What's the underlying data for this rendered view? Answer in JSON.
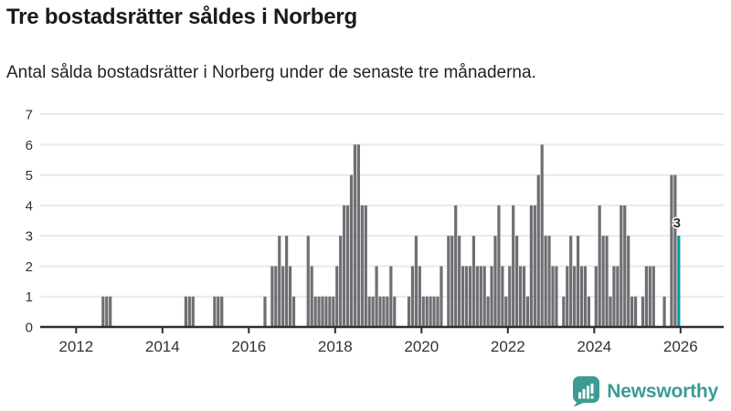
{
  "header": {
    "title": "Tre bostadsrätter såldes i Norberg",
    "subtitle": "Antal sålda bostadsrätter i Norberg under de senaste tre månaderna."
  },
  "colors": {
    "bar": "#6f6e73",
    "highlight": "#00a1a1",
    "grid": "#e9e9e9",
    "axis": "#2e2d2f",
    "tick_text": "#333333",
    "title_text": "#1a1a1a",
    "logo": "#3b9c93"
  },
  "chart_data": {
    "type": "bar",
    "title": "Tre bostadsrätter såldes i Norberg",
    "subtitle": "Antal sålda bostadsrätter i Norberg under de senaste tre månaderna.",
    "xlabel": "",
    "ylabel": "",
    "ylim": [
      0,
      7
    ],
    "grid": true,
    "yticks": [
      "0",
      "1",
      "2",
      "3",
      "4",
      "5",
      "6",
      "7"
    ],
    "xticks": [
      "2012",
      "2014",
      "2016",
      "2018",
      "2020",
      "2022",
      "2024",
      "2026"
    ],
    "start": "2011-04",
    "end": "2025-12",
    "values_by_year": {
      "2011": [
        0,
        0,
        0,
        0,
        0,
        0,
        0,
        0,
        0
      ],
      "2012": [
        0,
        0,
        0,
        0,
        0,
        0,
        0,
        1,
        1,
        1,
        0,
        0
      ],
      "2013": [
        0,
        0,
        0,
        0,
        0,
        0,
        0,
        0,
        0,
        0,
        0,
        0
      ],
      "2014": [
        0,
        0,
        0,
        0,
        0,
        0,
        1,
        1,
        1,
        0,
        0,
        0
      ],
      "2015": [
        0,
        0,
        1,
        1,
        1,
        0,
        0,
        0,
        0,
        0,
        0,
        0
      ],
      "2016": [
        0,
        0,
        0,
        0,
        1,
        0,
        2,
        2,
        3,
        2,
        3,
        2
      ],
      "2017": [
        1,
        0,
        0,
        0,
        3,
        2,
        1,
        1,
        1,
        1,
        1,
        1
      ],
      "2018": [
        2,
        3,
        4,
        4,
        5,
        6,
        6,
        4,
        4,
        1,
        1,
        2
      ],
      "2019": [
        1,
        1,
        1,
        2,
        1,
        0,
        0,
        0,
        1,
        2,
        3,
        2
      ],
      "2020": [
        1,
        1,
        1,
        1,
        1,
        2,
        0,
        3,
        3,
        4,
        3,
        2
      ],
      "2021": [
        2,
        2,
        3,
        2,
        2,
        2,
        1,
        2,
        3,
        4,
        2,
        1
      ],
      "2022": [
        2,
        4,
        3,
        2,
        2,
        1,
        4,
        4,
        5,
        6,
        3,
        3
      ],
      "2023": [
        2,
        2,
        0,
        1,
        2,
        3,
        2,
        3,
        2,
        2,
        1,
        0
      ],
      "2024": [
        2,
        4,
        3,
        3,
        1,
        2,
        2,
        4,
        4,
        3,
        1,
        1
      ],
      "2025": [
        0,
        1,
        2,
        2,
        2,
        0,
        0,
        1,
        0,
        5,
        5,
        3
      ]
    },
    "highlight": {
      "position": "last",
      "value": 3,
      "label": "3"
    },
    "legend": null
  },
  "branding": {
    "label": "Newsworthy",
    "icon": "newsworthy-speech-bubble-chart-icon"
  }
}
